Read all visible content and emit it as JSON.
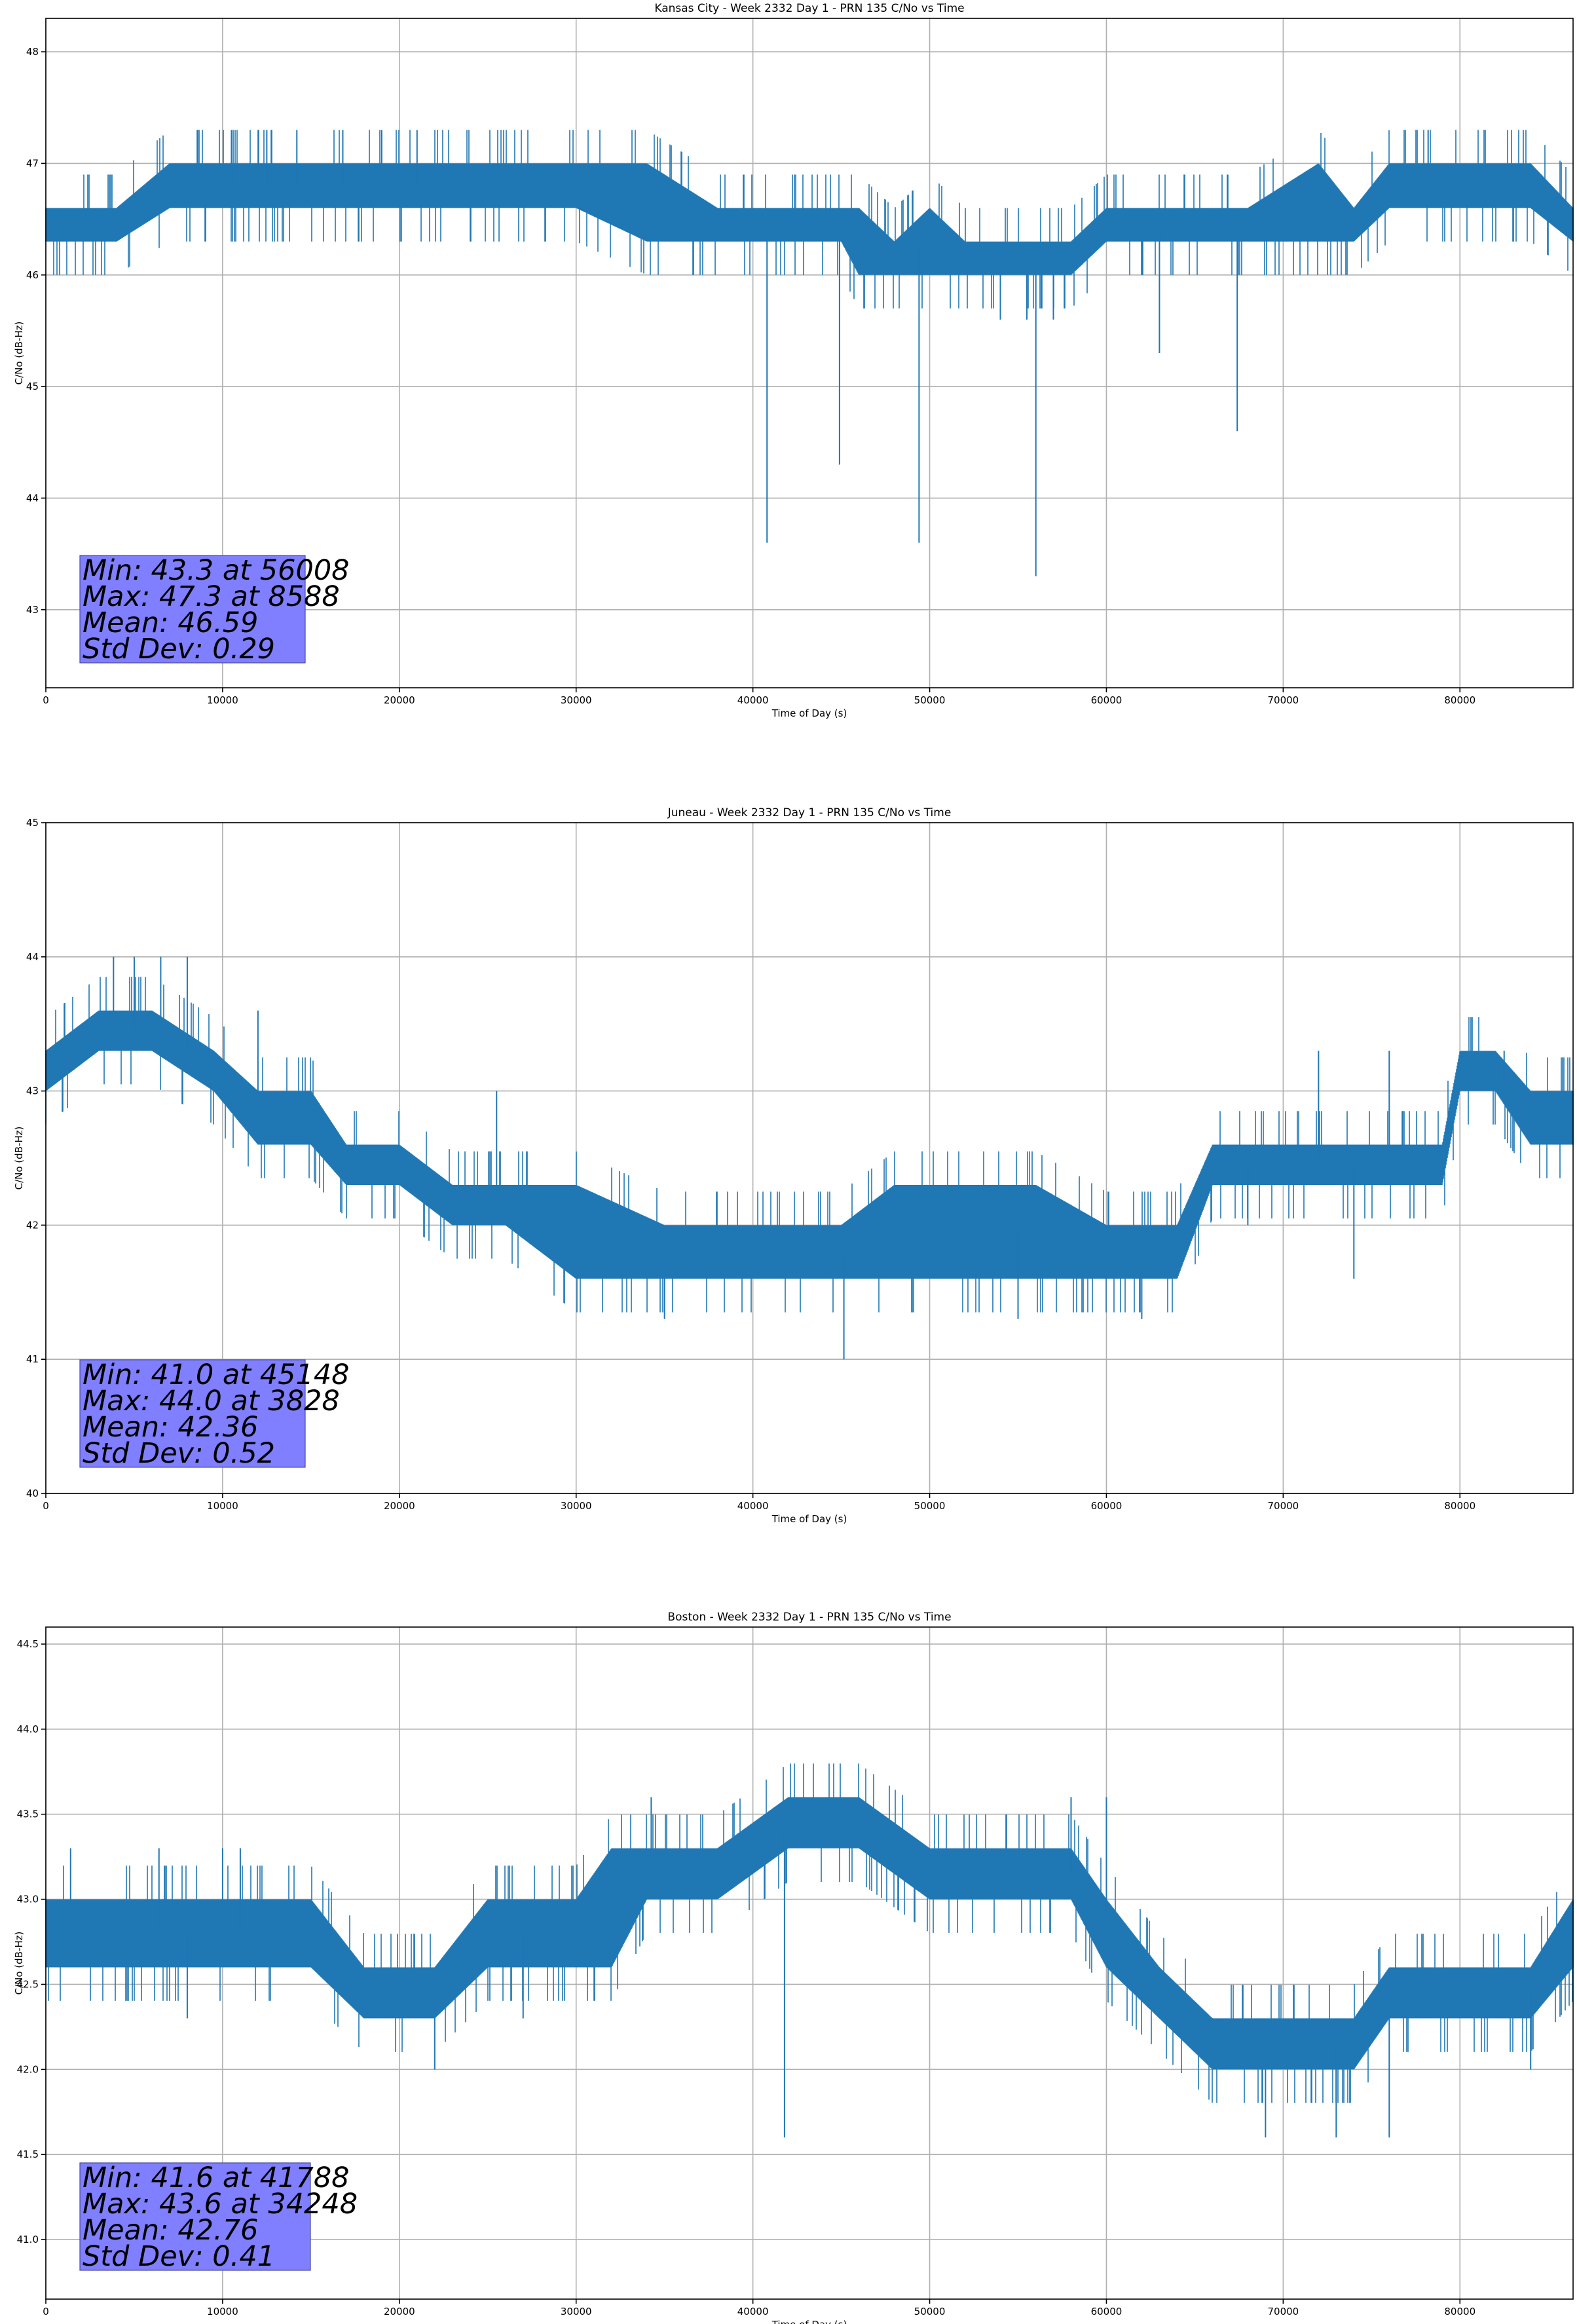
{
  "chart_data": [
    {
      "type": "line",
      "title": "Kansas City - Week 2332 Day 1 - PRN 135 C/No vs Time",
      "xlabel": "Time of Day (s)",
      "ylabel": "C/No (dB-Hz)",
      "xlim": [
        0,
        86400
      ],
      "ylim": [
        42.3,
        48.3
      ],
      "xticks": [
        0,
        10000,
        20000,
        30000,
        40000,
        50000,
        60000,
        70000,
        80000
      ],
      "yticks": [
        43,
        44,
        45,
        46,
        47,
        48
      ],
      "ytick_labels": [
        "43",
        "44",
        "45",
        "46",
        "47",
        "48"
      ],
      "grid": true,
      "color": "#1f77b4",
      "band": {
        "x": [
          0,
          4000,
          7000,
          10000,
          14000,
          20000,
          26000,
          30000,
          34000,
          38000,
          42000,
          45000,
          46000,
          48000,
          50000,
          52000,
          54000,
          56000,
          58000,
          60000,
          64000,
          68000,
          72000,
          74000,
          76000,
          80000,
          84000,
          86400
        ],
        "low": [
          46.3,
          46.3,
          46.6,
          46.6,
          46.6,
          46.6,
          46.6,
          46.6,
          46.3,
          46.3,
          46.3,
          46.3,
          46.0,
          46.0,
          46.0,
          46.0,
          46.0,
          46.0,
          46.0,
          46.3,
          46.3,
          46.3,
          46.3,
          46.3,
          46.6,
          46.6,
          46.6,
          46.3
        ],
        "high": [
          46.6,
          46.6,
          47.0,
          47.0,
          47.0,
          47.0,
          47.0,
          47.0,
          47.0,
          46.6,
          46.6,
          46.6,
          46.6,
          46.3,
          46.6,
          46.3,
          46.3,
          46.3,
          46.3,
          46.6,
          46.6,
          46.6,
          47.0,
          46.6,
          47.0,
          47.0,
          47.0,
          46.6
        ]
      },
      "spikes": [
        {
          "x": 40800,
          "y": 43.6
        },
        {
          "x": 44900,
          "y": 44.3
        },
        {
          "x": 49400,
          "y": 43.6
        },
        {
          "x": 56008,
          "y": 43.3
        },
        {
          "x": 67400,
          "y": 44.6
        },
        {
          "x": 63000,
          "y": 45.3
        },
        {
          "x": 54000,
          "y": 45.6
        },
        {
          "x": 55500,
          "y": 45.6
        },
        {
          "x": 57000,
          "y": 45.6
        },
        {
          "x": 8588,
          "y": 47.3
        },
        {
          "x": 10500,
          "y": 47.3
        },
        {
          "x": 12500,
          "y": 47.3
        },
        {
          "x": 14200,
          "y": 47.3
        },
        {
          "x": 16800,
          "y": 47.3
        },
        {
          "x": 19000,
          "y": 47.3
        },
        {
          "x": 21000,
          "y": 47.3
        },
        {
          "x": 78200,
          "y": 47.3
        }
      ],
      "stats": {
        "min": "Min: 43.3 at 56008",
        "max": "Max: 47.3 at 8588",
        "mean": "Mean: 46.59",
        "std": "Std Dev: 0.29"
      }
    },
    {
      "type": "line",
      "title": "Juneau - Week 2332 Day 1 - PRN 135 C/No vs Time",
      "xlabel": "Time of Day (s)",
      "ylabel": "C/No (dB-Hz)",
      "xlim": [
        0,
        86400
      ],
      "ylim": [
        40,
        45
      ],
      "xticks": [
        0,
        10000,
        20000,
        30000,
        40000,
        50000,
        60000,
        70000,
        80000
      ],
      "yticks": [
        40,
        41,
        42,
        43,
        44,
        45
      ],
      "ytick_labels": [
        "40",
        "41",
        "42",
        "43",
        "44",
        "45"
      ],
      "grid": true,
      "color": "#1f77b4",
      "band": {
        "x": [
          0,
          3000,
          6000,
          9500,
          12000,
          15000,
          17000,
          20000,
          23000,
          26000,
          30000,
          35000,
          40000,
          45000,
          48000,
          52000,
          56000,
          60000,
          64000,
          66000,
          70000,
          74000,
          77000,
          79000,
          80000,
          82000,
          84000,
          86400
        ],
        "low": [
          43.0,
          43.3,
          43.3,
          43.0,
          42.6,
          42.6,
          42.3,
          42.3,
          42.0,
          42.0,
          41.6,
          41.6,
          41.6,
          41.6,
          41.6,
          41.6,
          41.6,
          41.6,
          41.6,
          42.3,
          42.3,
          42.3,
          42.3,
          42.3,
          43.0,
          43.0,
          42.6,
          42.6
        ],
        "high": [
          43.3,
          43.6,
          43.6,
          43.3,
          43.0,
          43.0,
          42.6,
          42.6,
          42.3,
          42.3,
          42.3,
          42.0,
          42.0,
          42.0,
          42.3,
          42.3,
          42.3,
          42.0,
          42.0,
          42.6,
          42.6,
          42.6,
          42.6,
          42.6,
          43.3,
          43.3,
          43.0,
          43.0
        ]
      },
      "spikes": [
        {
          "x": 3828,
          "y": 44.0
        },
        {
          "x": 5000,
          "y": 44.0
        },
        {
          "x": 6500,
          "y": 44.0
        },
        {
          "x": 8000,
          "y": 44.0
        },
        {
          "x": 12000,
          "y": 43.6
        },
        {
          "x": 25500,
          "y": 43.0
        },
        {
          "x": 45148,
          "y": 41.0
        },
        {
          "x": 35000,
          "y": 41.3
        },
        {
          "x": 55000,
          "y": 41.3
        },
        {
          "x": 62000,
          "y": 41.3
        },
        {
          "x": 72000,
          "y": 43.3
        },
        {
          "x": 76000,
          "y": 43.3
        },
        {
          "x": 82500,
          "y": 43.3
        },
        {
          "x": 74000,
          "y": 41.6
        },
        {
          "x": 68000,
          "y": 42.0
        }
      ],
      "stats": {
        "min": "Min: 41.0 at 45148",
        "max": "Max: 44.0 at 3828",
        "mean": "Mean: 42.36",
        "std": "Std Dev: 0.52"
      }
    },
    {
      "type": "line",
      "title": "Boston - Week 2332 Day 1 - PRN 135 C/No vs Time",
      "xlabel": "Time of Day (s)",
      "ylabel": "C/No (dB-Hz)",
      "xlim": [
        0,
        86400
      ],
      "ylim": [
        40.65,
        44.6
      ],
      "xticks": [
        0,
        10000,
        20000,
        30000,
        40000,
        50000,
        60000,
        70000,
        80000
      ],
      "yticks": [
        41.0,
        41.5,
        42.0,
        42.5,
        43.0,
        43.5,
        44.0,
        44.5
      ],
      "ytick_labels": [
        "41.0",
        "41.5",
        "42.0",
        "42.5",
        "43.0",
        "43.5",
        "44.0",
        "44.5"
      ],
      "grid": true,
      "color": "#1f77b4",
      "band": {
        "x": [
          0,
          5000,
          10000,
          15000,
          18000,
          20000,
          22000,
          25000,
          28000,
          30000,
          32000,
          34000,
          38000,
          42000,
          46000,
          50000,
          54000,
          58000,
          60000,
          63000,
          66000,
          70000,
          74000,
          76000,
          80000,
          84000,
          86400
        ],
        "low": [
          42.6,
          42.6,
          42.6,
          42.6,
          42.3,
          42.3,
          42.3,
          42.6,
          42.6,
          42.6,
          42.6,
          43.0,
          43.0,
          43.3,
          43.3,
          43.0,
          43.0,
          43.0,
          42.6,
          42.3,
          42.0,
          42.0,
          42.0,
          42.3,
          42.3,
          42.3,
          42.6
        ],
        "high": [
          43.0,
          43.0,
          43.0,
          43.0,
          42.6,
          42.6,
          42.6,
          43.0,
          43.0,
          43.0,
          43.3,
          43.3,
          43.3,
          43.6,
          43.6,
          43.3,
          43.3,
          43.3,
          43.0,
          42.6,
          42.3,
          42.3,
          42.3,
          42.6,
          42.6,
          42.6,
          43.0
        ]
      },
      "spikes": [
        {
          "x": 1400,
          "y": 43.3
        },
        {
          "x": 6400,
          "y": 43.3
        },
        {
          "x": 10000,
          "y": 43.3
        },
        {
          "x": 11000,
          "y": 43.3
        },
        {
          "x": 22000,
          "y": 42.0
        },
        {
          "x": 34248,
          "y": 43.6
        },
        {
          "x": 41788,
          "y": 41.6
        },
        {
          "x": 58000,
          "y": 43.6
        },
        {
          "x": 60000,
          "y": 43.6
        },
        {
          "x": 69000,
          "y": 41.6
        },
        {
          "x": 73000,
          "y": 41.6
        },
        {
          "x": 76000,
          "y": 41.6
        },
        {
          "x": 8000,
          "y": 42.3
        },
        {
          "x": 27000,
          "y": 42.3
        },
        {
          "x": 84000,
          "y": 42.0
        }
      ],
      "stats": {
        "min": "Min: 41.6 at 41788",
        "max": "Max: 43.6 at 34248",
        "mean": "Mean: 42.76",
        "std": "Std Dev: 0.41"
      }
    }
  ]
}
